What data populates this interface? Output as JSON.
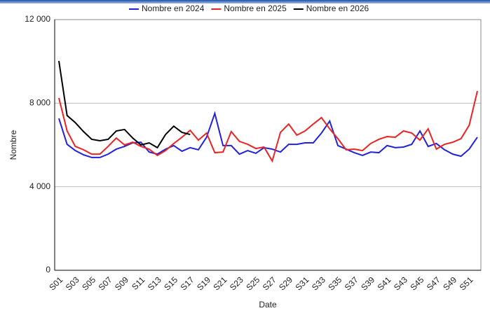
{
  "chart_data": {
    "type": "line",
    "x_label": "Date",
    "y_label": "Nombre",
    "categories": [
      "S01",
      null,
      "S03",
      null,
      "S05",
      null,
      "S07",
      null,
      "S09",
      null,
      "S11",
      null,
      "S13",
      null,
      "S15",
      null,
      "S17",
      null,
      "S19",
      null,
      "S21",
      null,
      "S23",
      null,
      "S25",
      null,
      "S27",
      null,
      "S29",
      null,
      "S31",
      null,
      "S33",
      null,
      "S35",
      null,
      "S37",
      null,
      "S39",
      null,
      "S41",
      null,
      "S43",
      null,
      "S45",
      null,
      "S47",
      null,
      "S49",
      null,
      "S51",
      null
    ],
    "series": [
      {
        "name": "Nombre en 2024",
        "color": "#2222dd",
        "values": [
          7270,
          6030,
          5730,
          5530,
          5400,
          5400,
          5560,
          5800,
          5930,
          6100,
          6130,
          5660,
          5560,
          5800,
          5970,
          5700,
          5870,
          5770,
          6370,
          7510,
          5970,
          5970,
          5560,
          5730,
          5600,
          5870,
          5800,
          5660,
          6030,
          6030,
          6100,
          6100,
          6570,
          7140,
          5970,
          5800,
          5630,
          5500,
          5660,
          5630,
          5970,
          5870,
          5900,
          6030,
          6670,
          5930,
          6070,
          5770,
          5560,
          5460,
          5800,
          6370
        ]
      },
      {
        "name": "Nombre en 2025",
        "color": "#ee2222",
        "values": [
          8250,
          6670,
          5930,
          5770,
          5560,
          5560,
          5930,
          6330,
          6000,
          6130,
          5930,
          5800,
          5500,
          5730,
          6070,
          6370,
          6700,
          6230,
          6570,
          5630,
          5660,
          6640,
          6170,
          6030,
          5830,
          5900,
          5230,
          6600,
          7000,
          6470,
          6670,
          7000,
          7310,
          6770,
          6300,
          5770,
          5800,
          5730,
          6070,
          6270,
          6400,
          6370,
          6670,
          6570,
          6230,
          6770,
          5800,
          6030,
          6130,
          6300,
          6940,
          8580
        ]
      },
      {
        "name": "Nombre en 2026",
        "color": "#000000",
        "values": [
          10020,
          7410,
          7070,
          6640,
          6270,
          6200,
          6270,
          6670,
          6740,
          6330,
          6000,
          6100,
          5870,
          6500,
          6900,
          6600,
          6500,
          null,
          null,
          null,
          null,
          null,
          null,
          null,
          null,
          null,
          null,
          null,
          null,
          null,
          null,
          null,
          null,
          null,
          null,
          null,
          null,
          null,
          null,
          null,
          null,
          null,
          null,
          null,
          null,
          null,
          null,
          null,
          null,
          null,
          null,
          null
        ]
      }
    ],
    "ylim": [
      0,
      12000
    ],
    "yticks": [
      0,
      {
        "value": 4000,
        "label": "4 000"
      },
      {
        "value": 8000,
        "label": "8 000"
      },
      {
        "value": 12000,
        "label": "12 000"
      }
    ],
    "grid": true,
    "legend": "top"
  }
}
